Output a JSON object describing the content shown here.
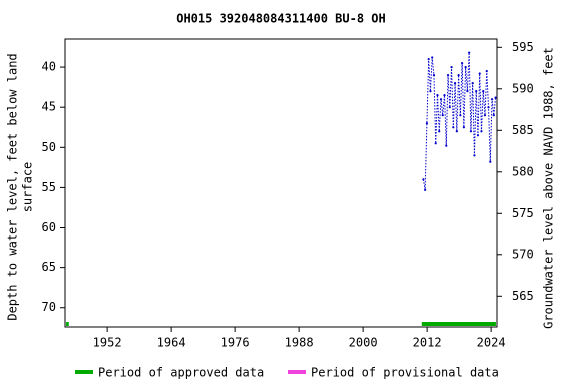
{
  "chart_data": {
    "type": "line",
    "title": "OH015 392048084311400 BU-8 OH",
    "ylabel": [
      "Depth to water level, feet below land",
      "surface"
    ],
    "y2label": "Groundwater level above NAVD 1988, feet",
    "x": [
      2011.3,
      2011.63,
      2011.96,
      2012.29,
      2012.62,
      2012.95,
      2013.28,
      2013.61,
      2013.94,
      2014.27,
      2014.6,
      2014.93,
      2015.26,
      2015.59,
      2015.92,
      2016.25,
      2016.58,
      2016.91,
      2017.24,
      2017.57,
      2017.9,
      2018.23,
      2018.56,
      2018.89,
      2019.22,
      2019.55,
      2019.88,
      2020.21,
      2020.54,
      2020.87,
      2021.2,
      2021.53,
      2021.86,
      2022.19,
      2022.52,
      2022.85,
      2023.18,
      2023.51,
      2023.84,
      2024.17,
      2024.5,
      2024.83
    ],
    "values": [
      54,
      55.3,
      47,
      39,
      43,
      38.8,
      41,
      49.5,
      43.5,
      48,
      44,
      46,
      43.5,
      49.8,
      41,
      45,
      40,
      47.5,
      42,
      48,
      41,
      46,
      39.5,
      47.5,
      40,
      43,
      38.2,
      48,
      42,
      51,
      43,
      48.5,
      40.8,
      48,
      43,
      46,
      40.5,
      45,
      51.8,
      44,
      46,
      43.8
    ],
    "color": "#0000cc",
    "xlim": [
      1944.1,
      2025.1
    ],
    "xticks": [
      1952,
      1964,
      1976,
      1988,
      2000,
      2012,
      2024
    ],
    "ylim": [
      36.5,
      72.4
    ],
    "y_inverted": true,
    "yticks": [
      40,
      45,
      50,
      55,
      60,
      65,
      70
    ],
    "y2lim": [
      561.3,
      596.0
    ],
    "y2ticks": [
      565,
      570,
      575,
      580,
      585,
      590,
      595
    ],
    "periods": [
      {
        "name": "Period of approved data",
        "color": "#00aa00",
        "ranges": [
          [
            1944.3,
            1944.8
          ],
          [
            2011.0,
            2024.9
          ]
        ]
      },
      {
        "name": "Period of provisional data",
        "color": "#ee44dd",
        "ranges": []
      }
    ]
  }
}
